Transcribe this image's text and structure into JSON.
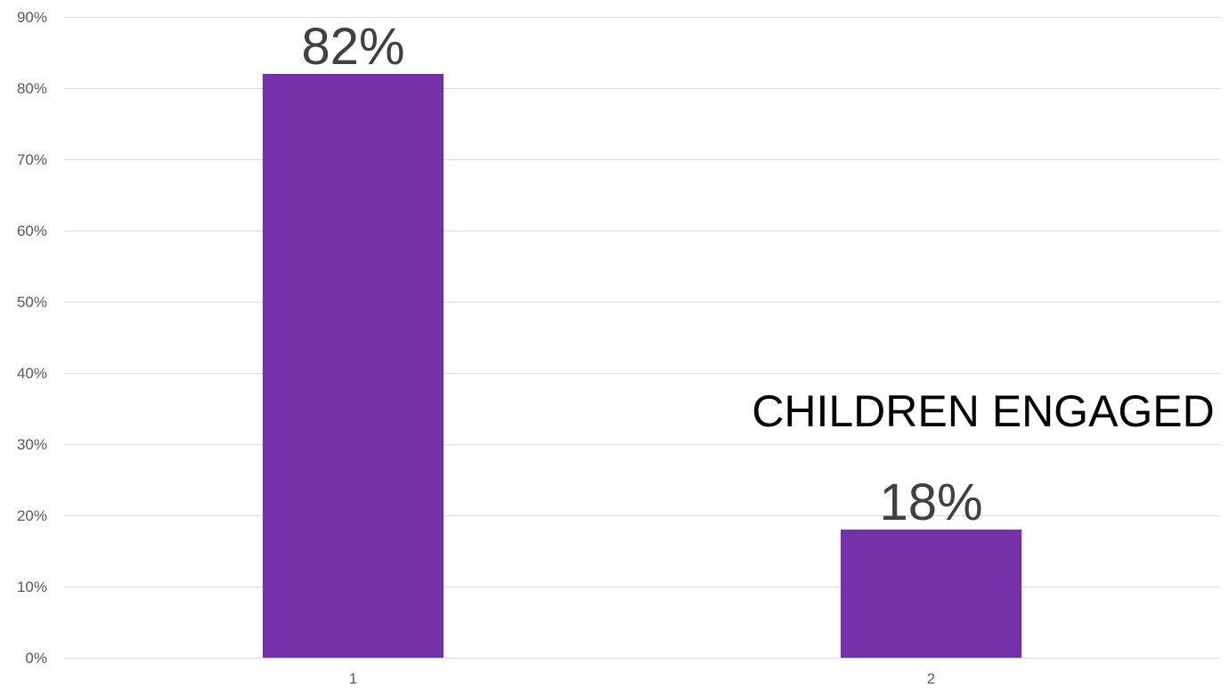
{
  "chart_data": {
    "type": "bar",
    "categories": [
      "1",
      "2"
    ],
    "values": [
      0.82,
      0.18
    ],
    "data_labels": [
      "82%",
      "18%"
    ],
    "annotation": "CHILDREN ENGAGED",
    "ylim": [
      0,
      0.9
    ],
    "y_ticks": [
      0,
      0.1,
      0.2,
      0.3,
      0.4,
      0.5,
      0.6,
      0.7,
      0.8,
      0.9
    ],
    "y_tick_labels": [
      "0%",
      "10%",
      "20%",
      "30%",
      "40%",
      "50%",
      "60%",
      "70%",
      "80%",
      "90%"
    ],
    "grid": true,
    "legend": "none",
    "bar_color": "#7531A8"
  }
}
